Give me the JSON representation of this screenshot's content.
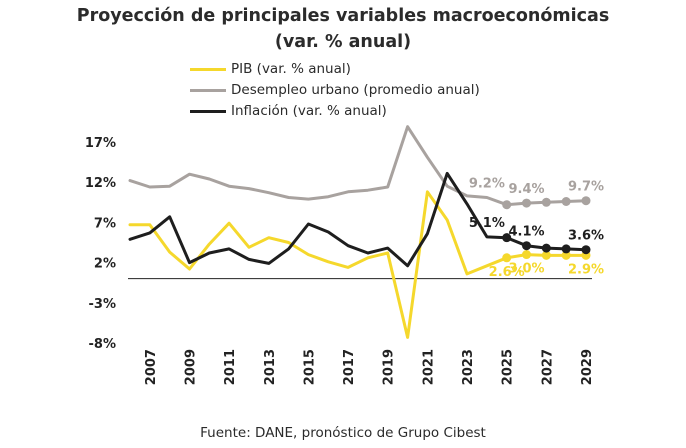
{
  "chart_data": {
    "type": "line",
    "title": "Proyección de principales variables macroeconómicas",
    "subtitle": "(var. % anual)",
    "x": [
      2006,
      2007,
      2008,
      2009,
      2010,
      2011,
      2012,
      2013,
      2014,
      2015,
      2016,
      2017,
      2018,
      2019,
      2020,
      2021,
      2022,
      2023,
      2024,
      2025,
      2026,
      2027,
      2028,
      2029
    ],
    "x_tick_labels": [
      "2007",
      "2009",
      "2011",
      "2013",
      "2015",
      "2017",
      "2019",
      "2021",
      "2023",
      "2025",
      "2027",
      "2029"
    ],
    "y_tick_labels": [
      "17%",
      "12%",
      "7%",
      "2%",
      "-3%",
      "-8%"
    ],
    "ylim": [
      -8,
      17
    ],
    "legend_position": "top",
    "grid": false,
    "series": [
      {
        "name": "PIB (var. % anual)",
        "color": "#f5d82c",
        "values": [
          6.7,
          6.7,
          3.3,
          1.2,
          4.3,
          6.9,
          3.9,
          5.1,
          4.5,
          3.0,
          2.1,
          1.4,
          2.6,
          3.2,
          -7.3,
          10.8,
          7.3,
          0.6,
          1.6,
          2.6,
          3.0,
          2.9,
          2.9,
          2.9
        ],
        "labels": [
          {
            "x": 2025,
            "text": "2.6%"
          },
          {
            "x": 2026,
            "text": "3.0%"
          },
          {
            "x": 2029,
            "text": "2.9%"
          }
        ],
        "markers_from": 2025
      },
      {
        "name": "Desempleo urbano (promedio anual)",
        "color": "#a8a29f",
        "values": [
          12.2,
          11.4,
          11.5,
          13.0,
          12.4,
          11.5,
          11.2,
          10.7,
          10.1,
          9.9,
          10.2,
          10.8,
          11.0,
          11.4,
          18.9,
          15.1,
          11.5,
          10.3,
          10.1,
          9.2,
          9.4,
          9.5,
          9.6,
          9.7
        ],
        "labels": [
          {
            "x": 2024,
            "text": "9.2%"
          },
          {
            "x": 2026,
            "text": "9.4%"
          },
          {
            "x": 2029,
            "text": "9.7%"
          }
        ],
        "markers_from": 2025
      },
      {
        "name": "Inflación (var. % anual)",
        "color": "#1e1e1e",
        "values": [
          4.9,
          5.7,
          7.7,
          2.0,
          3.2,
          3.7,
          2.4,
          1.9,
          3.7,
          6.8,
          5.8,
          4.1,
          3.2,
          3.8,
          1.6,
          5.6,
          13.1,
          9.3,
          5.2,
          5.1,
          4.1,
          3.8,
          3.7,
          3.6
        ],
        "labels": [
          {
            "x": 2024,
            "text": "5.1%"
          },
          {
            "x": 2026,
            "text": "4.1%"
          },
          {
            "x": 2029,
            "text": "3.6%"
          }
        ],
        "markers_from": 2025
      }
    ]
  },
  "source": "Fuente: DANE, pronóstico de Grupo Cibest"
}
